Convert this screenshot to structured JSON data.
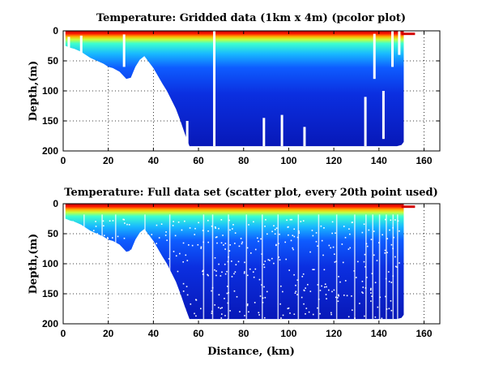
{
  "chart_data": [
    {
      "type": "heatmap",
      "title": "Temperature: Gridded data (1km x 4m) (pcolor plot)",
      "xlabel": "",
      "ylabel": "Depth,(m)",
      "xlim": [
        0,
        167
      ],
      "ylim": [
        200,
        0
      ],
      "y_axis_reversed": true,
      "xticks": [
        0,
        20,
        40,
        60,
        80,
        100,
        120,
        140,
        160
      ],
      "yticks": [
        0,
        50,
        100,
        150,
        200
      ],
      "grid": true,
      "colormap": "jet",
      "colors": {
        "surface": "#d40000",
        "deep": "#0a22c8",
        "missing": "#ffffff"
      },
      "bottom_profile": {
        "x": [
          1,
          3,
          5,
          8,
          10,
          12,
          15,
          18,
          20,
          22,
          25,
          28,
          30,
          32,
          34,
          36,
          38,
          40,
          42,
          44,
          46,
          48,
          50,
          52,
          54,
          56,
          60,
          66,
          70,
          80,
          90,
          100,
          110,
          120,
          130,
          132,
          134,
          136,
          138,
          140,
          142,
          144,
          146,
          148,
          150,
          151
        ],
        "depth": [
          25,
          28,
          30,
          35,
          40,
          45,
          50,
          55,
          60,
          62,
          68,
          80,
          78,
          60,
          48,
          42,
          52,
          62,
          75,
          88,
          100,
          115,
          130,
          150,
          172,
          192,
          192,
          192,
          192,
          192,
          192,
          192,
          192,
          192,
          192,
          192,
          192,
          192,
          192,
          192,
          192,
          192,
          192,
          192,
          190,
          185
        ]
      },
      "data_gaps": [
        {
          "x": 2.5,
          "depth_range": [
            10,
            80
          ]
        },
        {
          "x": 8,
          "depth_range": [
            8,
            40
          ]
        },
        {
          "x": 27,
          "depth_range": [
            6,
            60
          ]
        },
        {
          "x": 55,
          "depth_range": [
            150,
            192
          ]
        },
        {
          "x": 67,
          "depth_range": [
            0,
            192
          ]
        },
        {
          "x": 89,
          "depth_range": [
            145,
            192
          ]
        },
        {
          "x": 97,
          "depth_range": [
            140,
            192
          ]
        },
        {
          "x": 107,
          "depth_range": [
            160,
            192
          ]
        },
        {
          "x": 134,
          "depth_range": [
            110,
            192
          ]
        },
        {
          "x": 138,
          "depth_range": [
            5,
            80
          ]
        },
        {
          "x": 142,
          "depth_range": [
            100,
            180
          ]
        },
        {
          "x": 146,
          "depth_range": [
            0,
            60
          ]
        },
        {
          "x": 149,
          "depth_range": [
            0,
            40
          ]
        },
        {
          "x": 153,
          "depth_range": [
            10,
            25
          ]
        }
      ]
    },
    {
      "type": "scatter",
      "title": "Temperature: Full data set (scatter plot, every 20th point used)",
      "xlabel": "Distance, (km)",
      "ylabel": "Depth,(m)",
      "xlim": [
        0,
        167
      ],
      "ylim": [
        200,
        0
      ],
      "y_axis_reversed": true,
      "xticks": [
        0,
        20,
        40,
        60,
        80,
        100,
        120,
        140,
        160
      ],
      "yticks": [
        0,
        50,
        100,
        150,
        200
      ],
      "grid": true,
      "colormap": "jet",
      "colors": {
        "surface": "#d40000",
        "deep": "#0a22c8"
      },
      "bottom_profile": {
        "x": [
          1,
          3,
          5,
          8,
          10,
          12,
          15,
          18,
          20,
          22,
          25,
          28,
          30,
          32,
          34,
          36,
          38,
          40,
          42,
          44,
          46,
          48,
          50,
          52,
          54,
          56,
          60,
          66,
          70,
          80,
          90,
          100,
          110,
          120,
          130,
          132,
          134,
          136,
          138,
          140,
          142,
          144,
          146,
          148,
          150,
          151
        ],
        "depth": [
          25,
          28,
          30,
          35,
          40,
          45,
          50,
          55,
          60,
          62,
          68,
          80,
          78,
          60,
          48,
          42,
          52,
          62,
          75,
          88,
          100,
          115,
          130,
          150,
          172,
          192,
          192,
          192,
          192,
          192,
          192,
          192,
          192,
          192,
          192,
          192,
          192,
          192,
          192,
          192,
          192,
          192,
          192,
          192,
          190,
          185
        ]
      }
    }
  ]
}
